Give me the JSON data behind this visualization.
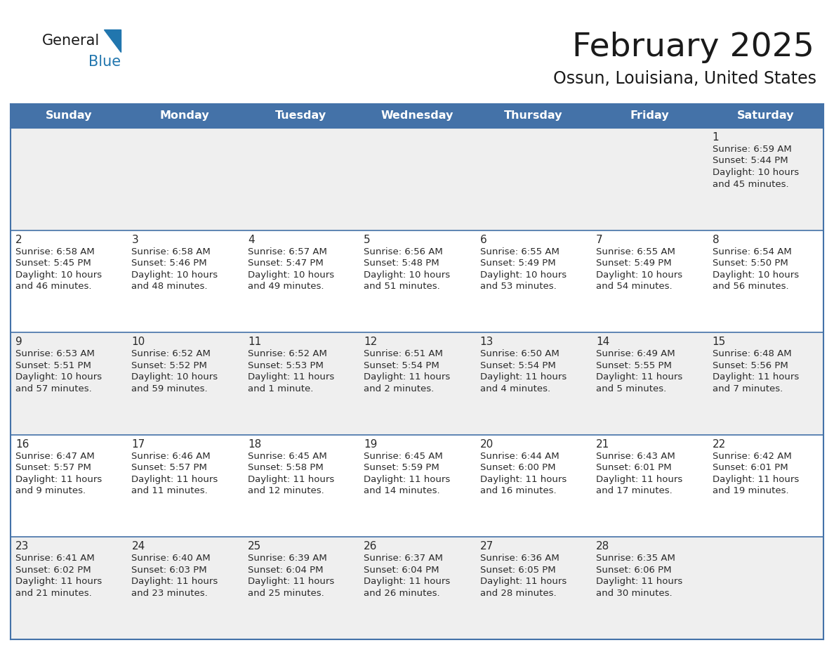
{
  "title": "February 2025",
  "subtitle": "Ossun, Louisiana, United States",
  "header_bg": "#4472A8",
  "header_text_color": "#FFFFFF",
  "row_bg_light": "#EFEFEF",
  "row_bg_white": "#FFFFFF",
  "day_names": [
    "Sunday",
    "Monday",
    "Tuesday",
    "Wednesday",
    "Thursday",
    "Friday",
    "Saturday"
  ],
  "days": [
    {
      "day": 1,
      "col": 6,
      "row": 0,
      "sunrise": "6:59 AM",
      "sunset": "5:44 PM",
      "daylight": "10 hours",
      "daylight2": "and 45 minutes."
    },
    {
      "day": 2,
      "col": 0,
      "row": 1,
      "sunrise": "6:58 AM",
      "sunset": "5:45 PM",
      "daylight": "10 hours",
      "daylight2": "and 46 minutes."
    },
    {
      "day": 3,
      "col": 1,
      "row": 1,
      "sunrise": "6:58 AM",
      "sunset": "5:46 PM",
      "daylight": "10 hours",
      "daylight2": "and 48 minutes."
    },
    {
      "day": 4,
      "col": 2,
      "row": 1,
      "sunrise": "6:57 AM",
      "sunset": "5:47 PM",
      "daylight": "10 hours",
      "daylight2": "and 49 minutes."
    },
    {
      "day": 5,
      "col": 3,
      "row": 1,
      "sunrise": "6:56 AM",
      "sunset": "5:48 PM",
      "daylight": "10 hours",
      "daylight2": "and 51 minutes."
    },
    {
      "day": 6,
      "col": 4,
      "row": 1,
      "sunrise": "6:55 AM",
      "sunset": "5:49 PM",
      "daylight": "10 hours",
      "daylight2": "and 53 minutes."
    },
    {
      "day": 7,
      "col": 5,
      "row": 1,
      "sunrise": "6:55 AM",
      "sunset": "5:49 PM",
      "daylight": "10 hours",
      "daylight2": "and 54 minutes."
    },
    {
      "day": 8,
      "col": 6,
      "row": 1,
      "sunrise": "6:54 AM",
      "sunset": "5:50 PM",
      "daylight": "10 hours",
      "daylight2": "and 56 minutes."
    },
    {
      "day": 9,
      "col": 0,
      "row": 2,
      "sunrise": "6:53 AM",
      "sunset": "5:51 PM",
      "daylight": "10 hours",
      "daylight2": "and 57 minutes."
    },
    {
      "day": 10,
      "col": 1,
      "row": 2,
      "sunrise": "6:52 AM",
      "sunset": "5:52 PM",
      "daylight": "10 hours",
      "daylight2": "and 59 minutes."
    },
    {
      "day": 11,
      "col": 2,
      "row": 2,
      "sunrise": "6:52 AM",
      "sunset": "5:53 PM",
      "daylight": "11 hours",
      "daylight2": "and 1 minute."
    },
    {
      "day": 12,
      "col": 3,
      "row": 2,
      "sunrise": "6:51 AM",
      "sunset": "5:54 PM",
      "daylight": "11 hours",
      "daylight2": "and 2 minutes."
    },
    {
      "day": 13,
      "col": 4,
      "row": 2,
      "sunrise": "6:50 AM",
      "sunset": "5:54 PM",
      "daylight": "11 hours",
      "daylight2": "and 4 minutes."
    },
    {
      "day": 14,
      "col": 5,
      "row": 2,
      "sunrise": "6:49 AM",
      "sunset": "5:55 PM",
      "daylight": "11 hours",
      "daylight2": "and 5 minutes."
    },
    {
      "day": 15,
      "col": 6,
      "row": 2,
      "sunrise": "6:48 AM",
      "sunset": "5:56 PM",
      "daylight": "11 hours",
      "daylight2": "and 7 minutes."
    },
    {
      "day": 16,
      "col": 0,
      "row": 3,
      "sunrise": "6:47 AM",
      "sunset": "5:57 PM",
      "daylight": "11 hours",
      "daylight2": "and 9 minutes."
    },
    {
      "day": 17,
      "col": 1,
      "row": 3,
      "sunrise": "6:46 AM",
      "sunset": "5:57 PM",
      "daylight": "11 hours",
      "daylight2": "and 11 minutes."
    },
    {
      "day": 18,
      "col": 2,
      "row": 3,
      "sunrise": "6:45 AM",
      "sunset": "5:58 PM",
      "daylight": "11 hours",
      "daylight2": "and 12 minutes."
    },
    {
      "day": 19,
      "col": 3,
      "row": 3,
      "sunrise": "6:45 AM",
      "sunset": "5:59 PM",
      "daylight": "11 hours",
      "daylight2": "and 14 minutes."
    },
    {
      "day": 20,
      "col": 4,
      "row": 3,
      "sunrise": "6:44 AM",
      "sunset": "6:00 PM",
      "daylight": "11 hours",
      "daylight2": "and 16 minutes."
    },
    {
      "day": 21,
      "col": 5,
      "row": 3,
      "sunrise": "6:43 AM",
      "sunset": "6:01 PM",
      "daylight": "11 hours",
      "daylight2": "and 17 minutes."
    },
    {
      "day": 22,
      "col": 6,
      "row": 3,
      "sunrise": "6:42 AM",
      "sunset": "6:01 PM",
      "daylight": "11 hours",
      "daylight2": "and 19 minutes."
    },
    {
      "day": 23,
      "col": 0,
      "row": 4,
      "sunrise": "6:41 AM",
      "sunset": "6:02 PM",
      "daylight": "11 hours",
      "daylight2": "and 21 minutes."
    },
    {
      "day": 24,
      "col": 1,
      "row": 4,
      "sunrise": "6:40 AM",
      "sunset": "6:03 PM",
      "daylight": "11 hours",
      "daylight2": "and 23 minutes."
    },
    {
      "day": 25,
      "col": 2,
      "row": 4,
      "sunrise": "6:39 AM",
      "sunset": "6:04 PM",
      "daylight": "11 hours",
      "daylight2": "and 25 minutes."
    },
    {
      "day": 26,
      "col": 3,
      "row": 4,
      "sunrise": "6:37 AM",
      "sunset": "6:04 PM",
      "daylight": "11 hours",
      "daylight2": "and 26 minutes."
    },
    {
      "day": 27,
      "col": 4,
      "row": 4,
      "sunrise": "6:36 AM",
      "sunset": "6:05 PM",
      "daylight": "11 hours",
      "daylight2": "and 28 minutes."
    },
    {
      "day": 28,
      "col": 5,
      "row": 4,
      "sunrise": "6:35 AM",
      "sunset": "6:06 PM",
      "daylight": "11 hours",
      "daylight2": "and 30 minutes."
    }
  ],
  "num_rows": 5,
  "border_color": "#4472A8",
  "line_color": "#4472A8",
  "logo_general_color": "#1a1a1a",
  "logo_blue_color": "#2176AE",
  "logo_triangle_color": "#2176AE",
  "title_color": "#1a1a1a",
  "subtitle_color": "#1a1a1a"
}
